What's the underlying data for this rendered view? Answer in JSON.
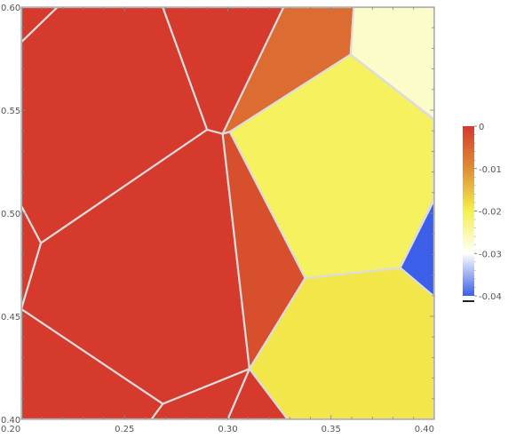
{
  "chart_data": {
    "type": "heatmap",
    "subtype": "voronoi",
    "xlim": [
      0.2,
      0.4
    ],
    "ylim": [
      0.4,
      0.6
    ],
    "x_ticks": [
      "0.20",
      "0.25",
      "0.30",
      "0.35",
      "0.40"
    ],
    "y_ticks": [
      "0.40",
      "0.45",
      "0.50",
      "0.55",
      "0.60"
    ],
    "frame_ticks": true,
    "legend": {
      "position": "right",
      "range": [
        -0.04,
        0
      ],
      "ticks": [
        "0",
        "-0.01",
        "-0.02",
        "-0.03",
        "-0.04"
      ],
      "gradient": [
        "#d53a2c",
        "#e08e35",
        "#f5f04d",
        "#ffffff",
        "#3b5fe8"
      ]
    },
    "cells": [
      {
        "value": 0.0,
        "polygon": [
          [
            0.2,
            0.6
          ],
          [
            0.2175,
            0.6
          ],
          [
            0.2,
            0.583
          ]
        ]
      },
      {
        "value": 0.0,
        "polygon": [
          [
            0.2175,
            0.6
          ],
          [
            0.2685,
            0.6
          ],
          [
            0.29,
            0.5405
          ],
          [
            0.2095,
            0.4855
          ],
          [
            0.2,
            0.5035
          ],
          [
            0.2,
            0.583
          ]
        ]
      },
      {
        "value": 0.0,
        "polygon": [
          [
            0.2685,
            0.6
          ],
          [
            0.327,
            0.6
          ],
          [
            0.2975,
            0.5385
          ],
          [
            0.29,
            0.5405
          ]
        ]
      },
      {
        "value": 0.0,
        "polygon": [
          [
            0.2,
            0.5035
          ],
          [
            0.2095,
            0.4855
          ],
          [
            0.2,
            0.4535
          ]
        ]
      },
      {
        "value": 0.0,
        "polygon": [
          [
            0.2095,
            0.4855
          ],
          [
            0.29,
            0.5405
          ],
          [
            0.2975,
            0.5385
          ],
          [
            0.3105,
            0.4245
          ],
          [
            0.2685,
            0.4075
          ],
          [
            0.2,
            0.4535
          ]
        ]
      },
      {
        "value": 0.0,
        "polygon": [
          [
            0.2,
            0.4535
          ],
          [
            0.2685,
            0.4075
          ],
          [
            0.263,
            0.4
          ],
          [
            0.2,
            0.4
          ]
        ]
      },
      {
        "value": 0.0,
        "polygon": [
          [
            0.2685,
            0.4075
          ],
          [
            0.3105,
            0.4245
          ],
          [
            0.3,
            0.4
          ],
          [
            0.263,
            0.4
          ]
        ]
      },
      {
        "value": 0.0,
        "polygon": [
          [
            0.3105,
            0.4245
          ],
          [
            0.329,
            0.4
          ],
          [
            0.3,
            0.4
          ]
        ]
      },
      {
        "value": -0.006,
        "polygon": [
          [
            0.2975,
            0.5385
          ],
          [
            0.327,
            0.6
          ],
          [
            0.361,
            0.6
          ],
          [
            0.3595,
            0.577
          ],
          [
            0.301,
            0.5395
          ]
        ]
      },
      {
        "value": -0.0025,
        "polygon": [
          [
            0.2975,
            0.5385
          ],
          [
            0.301,
            0.5395
          ],
          [
            0.3375,
            0.4685
          ],
          [
            0.3105,
            0.4245
          ]
        ]
      },
      {
        "value": -0.021,
        "polygon": [
          [
            0.301,
            0.5395
          ],
          [
            0.3595,
            0.577
          ],
          [
            0.3995,
            0.5455
          ],
          [
            0.3995,
            0.5065
          ],
          [
            0.3835,
            0.4735
          ],
          [
            0.3375,
            0.4685
          ]
        ]
      },
      {
        "value": -0.027,
        "polygon": [
          [
            0.361,
            0.6
          ],
          [
            0.4,
            0.6
          ],
          [
            0.4,
            0.5455
          ],
          [
            0.3595,
            0.577
          ]
        ]
      },
      {
        "value": -0.04,
        "polygon": [
          [
            0.4,
            0.5065
          ],
          [
            0.4,
            0.4595
          ],
          [
            0.3835,
            0.4735
          ]
        ]
      },
      {
        "value": -0.019,
        "polygon": [
          [
            0.3375,
            0.4685
          ],
          [
            0.3835,
            0.4735
          ],
          [
            0.4,
            0.4595
          ],
          [
            0.4,
            0.4
          ],
          [
            0.329,
            0.4
          ],
          [
            0.3105,
            0.4245
          ]
        ]
      }
    ]
  }
}
